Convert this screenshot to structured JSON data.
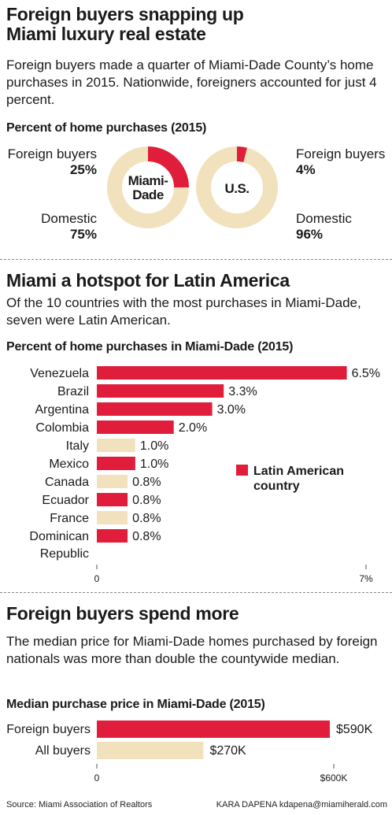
{
  "colors": {
    "latin": "#e01e3c",
    "other": "#f1e2bd",
    "text": "#1a1a1a"
  },
  "section1": {
    "title_lines": [
      "Foreign buyers snapping up",
      "Miami luxury real estate"
    ],
    "intro": "Foreign buyers made a quarter of Miami-Dade County’s home purchases in 2015. Nationwide, foreigners accounted for just 4 percent.",
    "chart_title": "Percent of home purchases (2015)"
  },
  "section2": {
    "title": "Miami a hotspot for Latin America",
    "intro": "Of the 10 countries with the most purchases in Miami-Dade, seven were Latin American.",
    "chart_title": "Percent of home purchases in Miami-Dade (2015)",
    "legend_lines": [
      "Latin American",
      "country"
    ]
  },
  "section3": {
    "title": "Foreign buyers spend more",
    "intro": "The median price for Miami-Dade homes purchased by foreign nationals was more than double the countywide median.",
    "chart_title": "Median purchase price in Miami-Dade (2015)"
  },
  "footer": {
    "source": "Source: Miami Association of Realtors",
    "credit": "KARA DAPENA kdapena@miamiherald.com"
  },
  "chart_data": [
    {
      "type": "pie",
      "center_label": [
        "Miami-",
        "Dade"
      ],
      "slices": [
        {
          "name": "Foreign buyers",
          "value": 25,
          "label": "25%"
        },
        {
          "name": "Domestic",
          "value": 75,
          "label": "75%"
        }
      ]
    },
    {
      "type": "pie",
      "center_label": [
        "U.S."
      ],
      "slices": [
        {
          "name": "Foreign buyers",
          "value": 4,
          "label": "4%"
        },
        {
          "name": "Domestic",
          "value": 96,
          "label": "96%"
        }
      ]
    },
    {
      "type": "bar",
      "orientation": "horizontal",
      "title": "Percent of home purchases in Miami-Dade (2015)",
      "categories": [
        [
          "Venezuela"
        ],
        [
          "Brazil"
        ],
        [
          "Argentina"
        ],
        [
          "Colombia"
        ],
        [
          "Italy"
        ],
        [
          "Mexico"
        ],
        [
          "Canada"
        ],
        [
          "Ecuador"
        ],
        [
          "France"
        ],
        [
          "Dominican",
          "Republic"
        ]
      ],
      "values": [
        6.5,
        3.3,
        3.0,
        2.0,
        1.0,
        1.0,
        0.8,
        0.8,
        0.8,
        0.8
      ],
      "value_labels": [
        "6.5%",
        "3.3%",
        "3.0%",
        "2.0%",
        "1.0%",
        "1.0%",
        "0.8%",
        "0.8%",
        "0.8%",
        "0.8%"
      ],
      "latin_american": [
        true,
        true,
        true,
        true,
        false,
        true,
        false,
        true,
        false,
        true
      ],
      "xlim": [
        0,
        7
      ],
      "xticks": [
        {
          "value": 0,
          "label": "0"
        },
        {
          "value": 7,
          "label": "7%"
        }
      ]
    },
    {
      "type": "bar",
      "orientation": "horizontal",
      "title": "Median purchase price in Miami-Dade (2015)",
      "categories": [
        [
          "Foreign buyers"
        ],
        [
          "All buyers"
        ]
      ],
      "values": [
        590000,
        270000
      ],
      "value_labels": [
        "$590K",
        "$270K"
      ],
      "highlight": [
        true,
        false
      ],
      "xlim": [
        0,
        600000
      ],
      "xticks": [
        {
          "value": 0,
          "label": "0"
        },
        {
          "value": 600000,
          "label": "$600K"
        }
      ]
    }
  ]
}
